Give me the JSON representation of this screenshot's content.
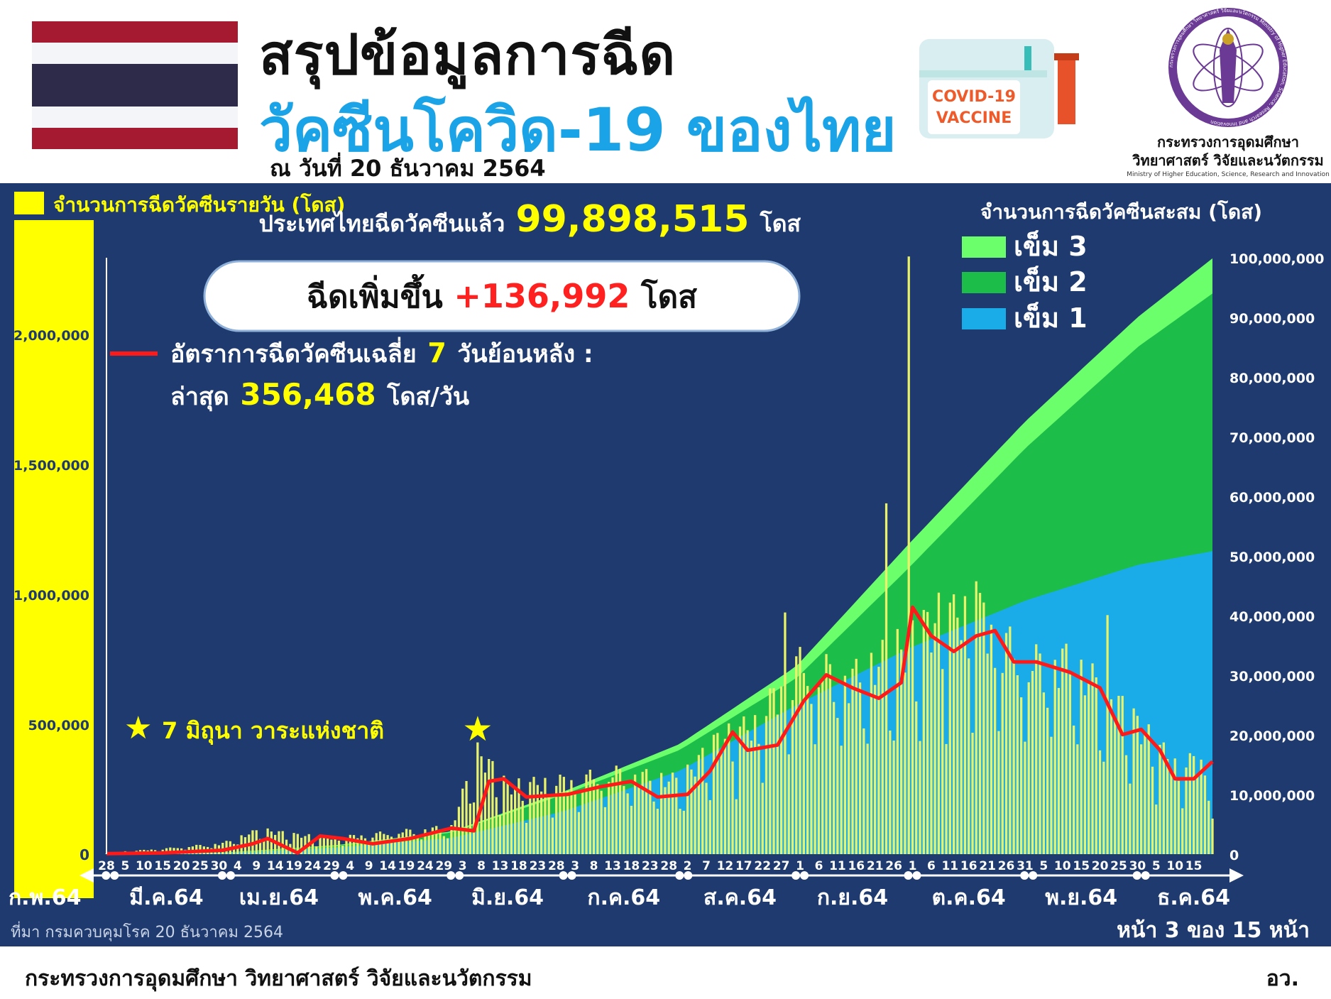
{
  "header": {
    "title_line1": "สรุปข้อมูลการฉีด",
    "title_line2": "วัคซีนโควิด-19 ของไทย",
    "date": "ณ วันที่ 20 ธันวาคม 2564",
    "vaccine_badge_line1": "COVID-19",
    "vaccine_badge_line2": "VACCINE",
    "ministry_th_line1": "กระทรวงการอุดมศึกษา",
    "ministry_th_line2": "วิทยาศาสตร์ วิจัยและนวัตกรรม",
    "ministry_en": "Ministry of Higher Education, Science, Research and Innovation",
    "ministry_logo_text": "กระทรวงการอุดมศึกษา วิทยาศาสตร์ วิจัยและนวัตกรรม Ministry of Higher Education, Science, Research and Innovation"
  },
  "colors": {
    "panel_bg": "#1f3a6e",
    "daily_bar": "#e8f26a",
    "daily_axis_band": "#ffff00",
    "dose3": "#6cff6c",
    "dose2": "#1dbd4a",
    "dose1": "#1aace8",
    "avg_line": "#ff1a1a",
    "highlight": "#ffff00",
    "red_text": "#ff2020",
    "title_blue": "#1aa3e6"
  },
  "summary": {
    "total_prefix": "ประเทศไทยฉีดวัคซีนแล้ว",
    "total_value": "99,898,515",
    "total_unit": "โดส",
    "increase_prefix": "ฉีดเพิ่มขึ้น",
    "increase_value": "+136,992",
    "increase_unit": "โดส",
    "avg_label_prefix": "อัตราการฉีดวัคซีนเฉลี่ย",
    "avg_label_days": "7",
    "avg_label_suffix": "วันย้อนหลัง :",
    "latest_prefix": "ล่าสุด",
    "latest_value": "356,468",
    "latest_unit": "โดส/วัน",
    "annotation_star": "★",
    "annotation": "7 มิถุนา วาระแห่งชาติ"
  },
  "footer": {
    "source": "ที่มา กรมควบคุมโรค 20 ธันวาคม 2564",
    "page": "หน้า 3 ของ 15 หน้า",
    "ministry": "กระทรวงการอุดมศึกษา วิทยาศาสตร์ วิจัยและนวัตกรรม",
    "abbr": "อว."
  },
  "chart_data": {
    "type": "bar",
    "left_axis_title": "จำนวนการฉีดวัคซีนรายวัน (โดส)",
    "right_axis_title": "จำนวนการฉีดวัคซีนสะสม (โดส)",
    "left_ylim": [
      0,
      2400000
    ],
    "left_ticks": [
      "0",
      "500,000",
      "1,000,000",
      "1,500,000",
      "2,000,000"
    ],
    "left_tick_values": [
      0,
      500000,
      1000000,
      1500000,
      2000000
    ],
    "right_ylim": [
      0,
      100000000
    ],
    "right_ticks": [
      "0",
      "10,000,000",
      "20,000,000",
      "30,000,000",
      "40,000,000",
      "50,000,000",
      "60,000,000",
      "70,000,000",
      "80,000,000",
      "90,000,000",
      "100,000,000"
    ],
    "right_tick_values": [
      0,
      10000000,
      20000000,
      30000000,
      40000000,
      50000000,
      60000000,
      70000000,
      80000000,
      90000000,
      100000000
    ],
    "x_range": [
      "2021-02-28",
      "2021-12-20"
    ],
    "legend": [
      "เข็ม 3",
      "เข็ม 2",
      "เข็ม 1"
    ],
    "legend_position": "top-right",
    "day_ticks": [
      {
        "date": "2021-02-28",
        "label": "28"
      },
      {
        "date": "2021-03-05",
        "label": "5"
      },
      {
        "date": "2021-03-10",
        "label": "10"
      },
      {
        "date": "2021-03-15",
        "label": "15"
      },
      {
        "date": "2021-03-20",
        "label": "20"
      },
      {
        "date": "2021-03-25",
        "label": "25"
      },
      {
        "date": "2021-03-30",
        "label": "30"
      },
      {
        "date": "2021-04-04",
        "label": "4"
      },
      {
        "date": "2021-04-09",
        "label": "9"
      },
      {
        "date": "2021-04-14",
        "label": "14"
      },
      {
        "date": "2021-04-19",
        "label": "19"
      },
      {
        "date": "2021-04-24",
        "label": "24"
      },
      {
        "date": "2021-04-29",
        "label": "29"
      },
      {
        "date": "2021-05-04",
        "label": "4"
      },
      {
        "date": "2021-05-09",
        "label": "9"
      },
      {
        "date": "2021-05-14",
        "label": "14"
      },
      {
        "date": "2021-05-19",
        "label": "19"
      },
      {
        "date": "2021-05-24",
        "label": "24"
      },
      {
        "date": "2021-05-29",
        "label": "29"
      },
      {
        "date": "2021-06-03",
        "label": "3"
      },
      {
        "date": "2021-06-08",
        "label": "8"
      },
      {
        "date": "2021-06-13",
        "label": "13"
      },
      {
        "date": "2021-06-18",
        "label": "18"
      },
      {
        "date": "2021-06-23",
        "label": "23"
      },
      {
        "date": "2021-06-28",
        "label": "28"
      },
      {
        "date": "2021-07-03",
        "label": "3"
      },
      {
        "date": "2021-07-08",
        "label": "8"
      },
      {
        "date": "2021-07-13",
        "label": "13"
      },
      {
        "date": "2021-07-18",
        "label": "18"
      },
      {
        "date": "2021-07-23",
        "label": "23"
      },
      {
        "date": "2021-07-28",
        "label": "28"
      },
      {
        "date": "2021-08-02",
        "label": "2"
      },
      {
        "date": "2021-08-07",
        "label": "7"
      },
      {
        "date": "2021-08-12",
        "label": "12"
      },
      {
        "date": "2021-08-17",
        "label": "17"
      },
      {
        "date": "2021-08-22",
        "label": "22"
      },
      {
        "date": "2021-08-27",
        "label": "27"
      },
      {
        "date": "2021-09-01",
        "label": "1"
      },
      {
        "date": "2021-09-06",
        "label": "6"
      },
      {
        "date": "2021-09-11",
        "label": "11"
      },
      {
        "date": "2021-09-16",
        "label": "16"
      },
      {
        "date": "2021-09-21",
        "label": "21"
      },
      {
        "date": "2021-09-26",
        "label": "26"
      },
      {
        "date": "2021-10-01",
        "label": "1"
      },
      {
        "date": "2021-10-06",
        "label": "6"
      },
      {
        "date": "2021-10-11",
        "label": "11"
      },
      {
        "date": "2021-10-16",
        "label": "16"
      },
      {
        "date": "2021-10-21",
        "label": "21"
      },
      {
        "date": "2021-10-26",
        "label": "26"
      },
      {
        "date": "2021-10-31",
        "label": "31"
      },
      {
        "date": "2021-11-05",
        "label": "5"
      },
      {
        "date": "2021-11-10",
        "label": "10"
      },
      {
        "date": "2021-11-15",
        "label": "15"
      },
      {
        "date": "2021-11-20",
        "label": "20"
      },
      {
        "date": "2021-11-25",
        "label": "25"
      },
      {
        "date": "2021-11-30",
        "label": "30"
      },
      {
        "date": "2021-12-05",
        "label": "5"
      },
      {
        "date": "2021-12-10",
        "label": "10"
      },
      {
        "date": "2021-12-15",
        "label": "15"
      }
    ],
    "month_labels": [
      {
        "date": "2021-02-28",
        "label": "ก.พ.64"
      },
      {
        "date": "2021-03-16",
        "label": "มี.ค.64"
      },
      {
        "date": "2021-04-15",
        "label": "เม.ย.64"
      },
      {
        "date": "2021-05-16",
        "label": "พ.ค.64"
      },
      {
        "date": "2021-06-15",
        "label": "มิ.ย.64"
      },
      {
        "date": "2021-07-16",
        "label": "ก.ค.64"
      },
      {
        "date": "2021-08-16",
        "label": "ส.ค.64"
      },
      {
        "date": "2021-09-15",
        "label": "ก.ย.64"
      },
      {
        "date": "2021-10-16",
        "label": "ต.ค.64"
      },
      {
        "date": "2021-11-15",
        "label": "พ.ย.64"
      },
      {
        "date": "2021-12-15",
        "label": "ธ.ค.64"
      }
    ],
    "month_boundaries": [
      "2021-03-01",
      "2021-04-01",
      "2021-05-01",
      "2021-06-01",
      "2021-07-01",
      "2021-08-01",
      "2021-09-01",
      "2021-10-01",
      "2021-11-01",
      "2021-12-01"
    ],
    "star_marker_date": "2021-06-07",
    "cumulative_dose1": [
      {
        "date": "2021-02-28",
        "value": 0
      },
      {
        "date": "2021-03-31",
        "value": 200000
      },
      {
        "date": "2021-04-30",
        "value": 1100000
      },
      {
        "date": "2021-05-31",
        "value": 2700000
      },
      {
        "date": "2021-06-30",
        "value": 7200000
      },
      {
        "date": "2021-07-31",
        "value": 14000000
      },
      {
        "date": "2021-08-31",
        "value": 25000000
      },
      {
        "date": "2021-09-30",
        "value": 34500000
      },
      {
        "date": "2021-10-31",
        "value": 42500000
      },
      {
        "date": "2021-11-30",
        "value": 48500000
      },
      {
        "date": "2021-12-20",
        "value": 50800000
      }
    ],
    "cumulative_dose2": [
      {
        "date": "2021-02-28",
        "value": 0
      },
      {
        "date": "2021-03-31",
        "value": 220000
      },
      {
        "date": "2021-04-30",
        "value": 1400000
      },
      {
        "date": "2021-05-31",
        "value": 3600000
      },
      {
        "date": "2021-06-30",
        "value": 10000000
      },
      {
        "date": "2021-07-31",
        "value": 17500000
      },
      {
        "date": "2021-08-31",
        "value": 29500000
      },
      {
        "date": "2021-09-30",
        "value": 48000000
      },
      {
        "date": "2021-10-31",
        "value": 68000000
      },
      {
        "date": "2021-11-30",
        "value": 85000000
      },
      {
        "date": "2021-12-20",
        "value": 94000000
      }
    ],
    "cumulative_total": [
      {
        "date": "2021-02-28",
        "value": 0
      },
      {
        "date": "2021-03-31",
        "value": 250000
      },
      {
        "date": "2021-04-30",
        "value": 1500000
      },
      {
        "date": "2021-05-31",
        "value": 3800000
      },
      {
        "date": "2021-06-30",
        "value": 10500000
      },
      {
        "date": "2021-07-31",
        "value": 18500000
      },
      {
        "date": "2021-08-31",
        "value": 31500000
      },
      {
        "date": "2021-09-30",
        "value": 52000000
      },
      {
        "date": "2021-10-31",
        "value": 72500000
      },
      {
        "date": "2021-11-30",
        "value": 90000000
      },
      {
        "date": "2021-12-20",
        "value": 99898515
      }
    ],
    "daily_envelope": [
      {
        "date": "2021-02-28",
        "value": 5000
      },
      {
        "date": "2021-03-15",
        "value": 20000
      },
      {
        "date": "2021-03-31",
        "value": 40000
      },
      {
        "date": "2021-04-10",
        "value": 90000
      },
      {
        "date": "2021-04-20",
        "value": 70000
      },
      {
        "date": "2021-04-30",
        "value": 60000
      },
      {
        "date": "2021-05-15",
        "value": 80000
      },
      {
        "date": "2021-05-31",
        "value": 100000
      },
      {
        "date": "2021-06-07",
        "value": 380000
      },
      {
        "date": "2021-06-15",
        "value": 250000
      },
      {
        "date": "2021-06-30",
        "value": 270000
      },
      {
        "date": "2021-07-15",
        "value": 300000
      },
      {
        "date": "2021-07-31",
        "value": 270000
      },
      {
        "date": "2021-08-10",
        "value": 420000
      },
      {
        "date": "2021-08-20",
        "value": 480000
      },
      {
        "date": "2021-08-31",
        "value": 700000
      },
      {
        "date": "2021-09-15",
        "value": 650000
      },
      {
        "date": "2021-09-30",
        "value": 780000
      },
      {
        "date": "2021-10-10",
        "value": 900000
      },
      {
        "date": "2021-10-20",
        "value": 880000
      },
      {
        "date": "2021-10-31",
        "value": 700000
      },
      {
        "date": "2021-11-10",
        "value": 720000
      },
      {
        "date": "2021-11-20",
        "value": 620000
      },
      {
        "date": "2021-11-30",
        "value": 480000
      },
      {
        "date": "2021-12-10",
        "value": 330000
      },
      {
        "date": "2021-12-20",
        "value": 356468
      }
    ],
    "daily_spikes": [
      {
        "date": "2021-06-07",
        "value": 430000
      },
      {
        "date": "2021-08-28",
        "value": 930000
      },
      {
        "date": "2021-09-24",
        "value": 1350000
      },
      {
        "date": "2021-09-30",
        "value": 2300000
      },
      {
        "date": "2021-10-12",
        "value": 1000000
      },
      {
        "date": "2021-10-18",
        "value": 1050000
      },
      {
        "date": "2021-11-22",
        "value": 920000
      },
      {
        "date": "2021-12-20",
        "value": 136992
      }
    ],
    "avg_7day": [
      {
        "date": "2021-02-28",
        "value": 2000
      },
      {
        "date": "2021-03-15",
        "value": 5000
      },
      {
        "date": "2021-03-31",
        "value": 15000
      },
      {
        "date": "2021-04-08",
        "value": 40000
      },
      {
        "date": "2021-04-12",
        "value": 60000
      },
      {
        "date": "2021-04-20",
        "value": 5000
      },
      {
        "date": "2021-04-26",
        "value": 70000
      },
      {
        "date": "2021-05-02",
        "value": 60000
      },
      {
        "date": "2021-05-10",
        "value": 40000
      },
      {
        "date": "2021-05-20",
        "value": 60000
      },
      {
        "date": "2021-05-31",
        "value": 100000
      },
      {
        "date": "2021-06-06",
        "value": 90000
      },
      {
        "date": "2021-06-10",
        "value": 280000
      },
      {
        "date": "2021-06-14",
        "value": 290000
      },
      {
        "date": "2021-06-20",
        "value": 220000
      },
      {
        "date": "2021-07-01",
        "value": 230000
      },
      {
        "date": "2021-07-10",
        "value": 260000
      },
      {
        "date": "2021-07-18",
        "value": 280000
      },
      {
        "date": "2021-07-25",
        "value": 220000
      },
      {
        "date": "2021-08-02",
        "value": 230000
      },
      {
        "date": "2021-08-08",
        "value": 320000
      },
      {
        "date": "2021-08-14",
        "value": 470000
      },
      {
        "date": "2021-08-18",
        "value": 400000
      },
      {
        "date": "2021-08-26",
        "value": 420000
      },
      {
        "date": "2021-09-02",
        "value": 590000
      },
      {
        "date": "2021-09-08",
        "value": 690000
      },
      {
        "date": "2021-09-15",
        "value": 640000
      },
      {
        "date": "2021-09-22",
        "value": 600000
      },
      {
        "date": "2021-09-28",
        "value": 660000
      },
      {
        "date": "2021-10-01",
        "value": 950000
      },
      {
        "date": "2021-10-06",
        "value": 840000
      },
      {
        "date": "2021-10-12",
        "value": 780000
      },
      {
        "date": "2021-10-18",
        "value": 840000
      },
      {
        "date": "2021-10-23",
        "value": 860000
      },
      {
        "date": "2021-10-28",
        "value": 740000
      },
      {
        "date": "2021-11-03",
        "value": 740000
      },
      {
        "date": "2021-11-12",
        "value": 700000
      },
      {
        "date": "2021-11-20",
        "value": 640000
      },
      {
        "date": "2021-11-26",
        "value": 460000
      },
      {
        "date": "2021-12-01",
        "value": 480000
      },
      {
        "date": "2021-12-06",
        "value": 400000
      },
      {
        "date": "2021-12-10",
        "value": 290000
      },
      {
        "date": "2021-12-15",
        "value": 290000
      },
      {
        "date": "2021-12-20",
        "value": 356468
      }
    ]
  }
}
